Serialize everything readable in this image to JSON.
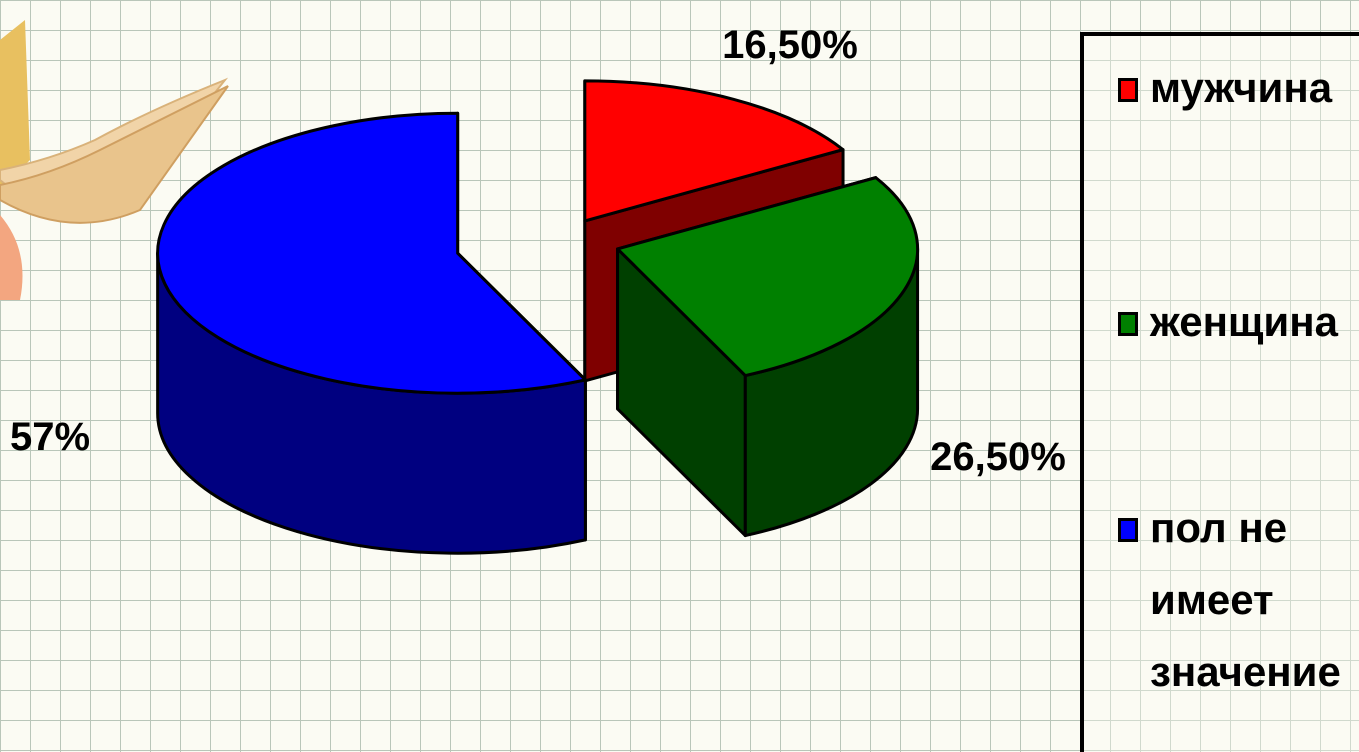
{
  "chart_data": {
    "type": "pie",
    "title": "",
    "slices": [
      {
        "name": "мужчина",
        "value": 16.5,
        "label": "16,50%",
        "color": "#ff0000",
        "side_color": "#7f0000"
      },
      {
        "name": "женщина",
        "value": 26.5,
        "label": "26,50%",
        "color": "#008000",
        "side_color": "#004000"
      },
      {
        "name": "пол не имеет значение",
        "value": 57,
        "label": "57%",
        "color": "#0000ff",
        "side_color": "#000080"
      }
    ],
    "legend_position": "right",
    "style": "3d-exploded",
    "grid": true
  },
  "decor": {
    "book_icon": "book-icon"
  }
}
